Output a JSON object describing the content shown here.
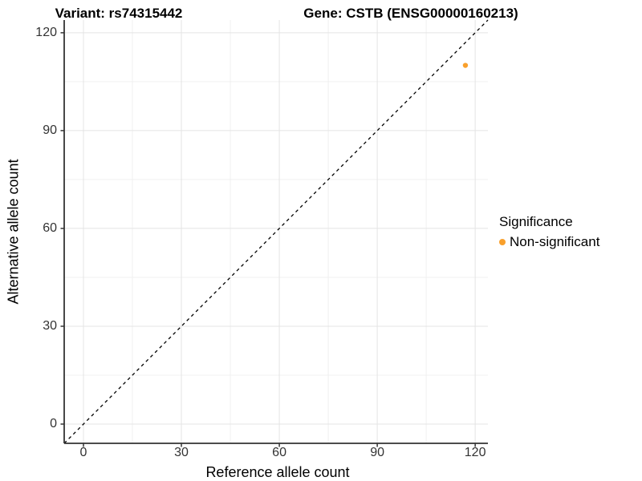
{
  "header": {
    "title_left": "Variant: rs74315442",
    "title_right": "Gene: CSTB (ENSG00000160213)"
  },
  "chart_data": {
    "type": "scatter",
    "title_left": "Variant: rs74315442",
    "title_right": "Gene: CSTB (ENSG00000160213)",
    "xlabel": "Reference allele count",
    "ylabel": "Alternative allele count",
    "xlim": [
      -5.9,
      123.9
    ],
    "ylim": [
      -5.9,
      123.9
    ],
    "x_ticks": [
      0,
      30,
      60,
      90,
      120
    ],
    "y_ticks": [
      0,
      30,
      60,
      90,
      120
    ],
    "x_minor_ticks": [
      15,
      45,
      75,
      105
    ],
    "y_minor_ticks": [
      15,
      45,
      75,
      105
    ],
    "grid": true,
    "points": [
      {
        "x": 117,
        "y": 110,
        "series": "Non-significant"
      }
    ],
    "identity_line": {
      "style": "dashed",
      "from": [
        -5.9,
        -5.9
      ],
      "to": [
        123.9,
        123.9
      ]
    },
    "legend": {
      "title": "Significance",
      "position": "right",
      "items": [
        {
          "label": "Non-significant",
          "color": "#F9A02C"
        }
      ]
    }
  },
  "colors": {
    "point": "#F9A02C",
    "grid_major": "#e4e4e4",
    "grid_minor": "#f0f0f0",
    "axis_line": "#333333",
    "tick_text": "#333333",
    "dashed_line": "#000000",
    "background": "#ffffff"
  }
}
